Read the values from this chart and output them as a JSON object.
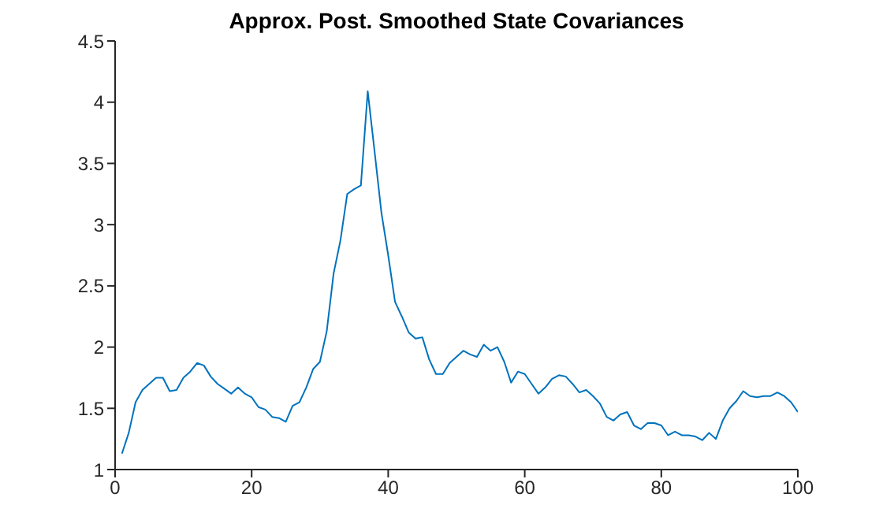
{
  "chart_data": {
    "type": "line",
    "title": "Approx. Post. Smoothed State Covariances",
    "x": [
      1,
      2,
      3,
      4,
      5,
      6,
      7,
      8,
      9,
      10,
      11,
      12,
      13,
      14,
      15,
      16,
      17,
      18,
      19,
      20,
      21,
      22,
      23,
      24,
      25,
      26,
      27,
      28,
      29,
      30,
      31,
      32,
      33,
      34,
      35,
      36,
      37,
      38,
      39,
      40,
      41,
      42,
      43,
      44,
      45,
      46,
      47,
      48,
      49,
      50,
      51,
      52,
      53,
      54,
      55,
      56,
      57,
      58,
      59,
      60,
      61,
      62,
      63,
      64,
      65,
      66,
      67,
      68,
      69,
      70,
      71,
      72,
      73,
      74,
      75,
      76,
      77,
      78,
      79,
      80,
      81,
      82,
      83,
      84,
      85,
      86,
      87,
      88,
      89,
      90,
      91,
      92,
      93,
      94,
      95,
      96,
      97,
      98,
      99,
      100
    ],
    "series": [
      {
        "color": "#0072bd",
        "values": [
          1.13,
          1.3,
          1.55,
          1.65,
          1.7,
          1.75,
          1.75,
          1.64,
          1.65,
          1.75,
          1.8,
          1.87,
          1.85,
          1.76,
          1.7,
          1.66,
          1.62,
          1.67,
          1.62,
          1.59,
          1.51,
          1.49,
          1.43,
          1.42,
          1.39,
          1.52,
          1.55,
          1.67,
          1.82,
          1.88,
          2.13,
          2.6,
          2.87,
          3.25,
          3.29,
          3.32,
          4.09,
          3.6,
          3.1,
          2.75,
          2.37,
          2.25,
          2.12,
          2.07,
          2.08,
          1.9,
          1.78,
          1.78,
          1.87,
          1.92,
          1.97,
          1.94,
          1.92,
          2.02,
          1.97,
          2.0,
          1.88,
          1.71,
          1.8,
          1.78,
          1.7,
          1.62,
          1.67,
          1.74,
          1.77,
          1.76,
          1.7,
          1.63,
          1.65,
          1.6,
          1.54,
          1.43,
          1.4,
          1.45,
          1.47,
          1.36,
          1.33,
          1.38,
          1.38,
          1.36,
          1.28,
          1.31,
          1.28,
          1.28,
          1.27,
          1.24,
          1.3,
          1.25,
          1.4,
          1.5,
          1.56,
          1.64,
          1.6,
          1.59,
          1.6,
          1.6,
          1.63,
          1.6,
          1.55,
          1.47
        ]
      }
    ],
    "xlim": [
      0,
      100
    ],
    "xticks": [
      0,
      20,
      40,
      60,
      80,
      100
    ],
    "ylim": [
      1,
      4.5
    ],
    "yticks": [
      1,
      1.5,
      2,
      2.5,
      3,
      3.5,
      4,
      4.5
    ],
    "grid": false,
    "legend": false,
    "marker": "none",
    "line_style": "solid"
  }
}
